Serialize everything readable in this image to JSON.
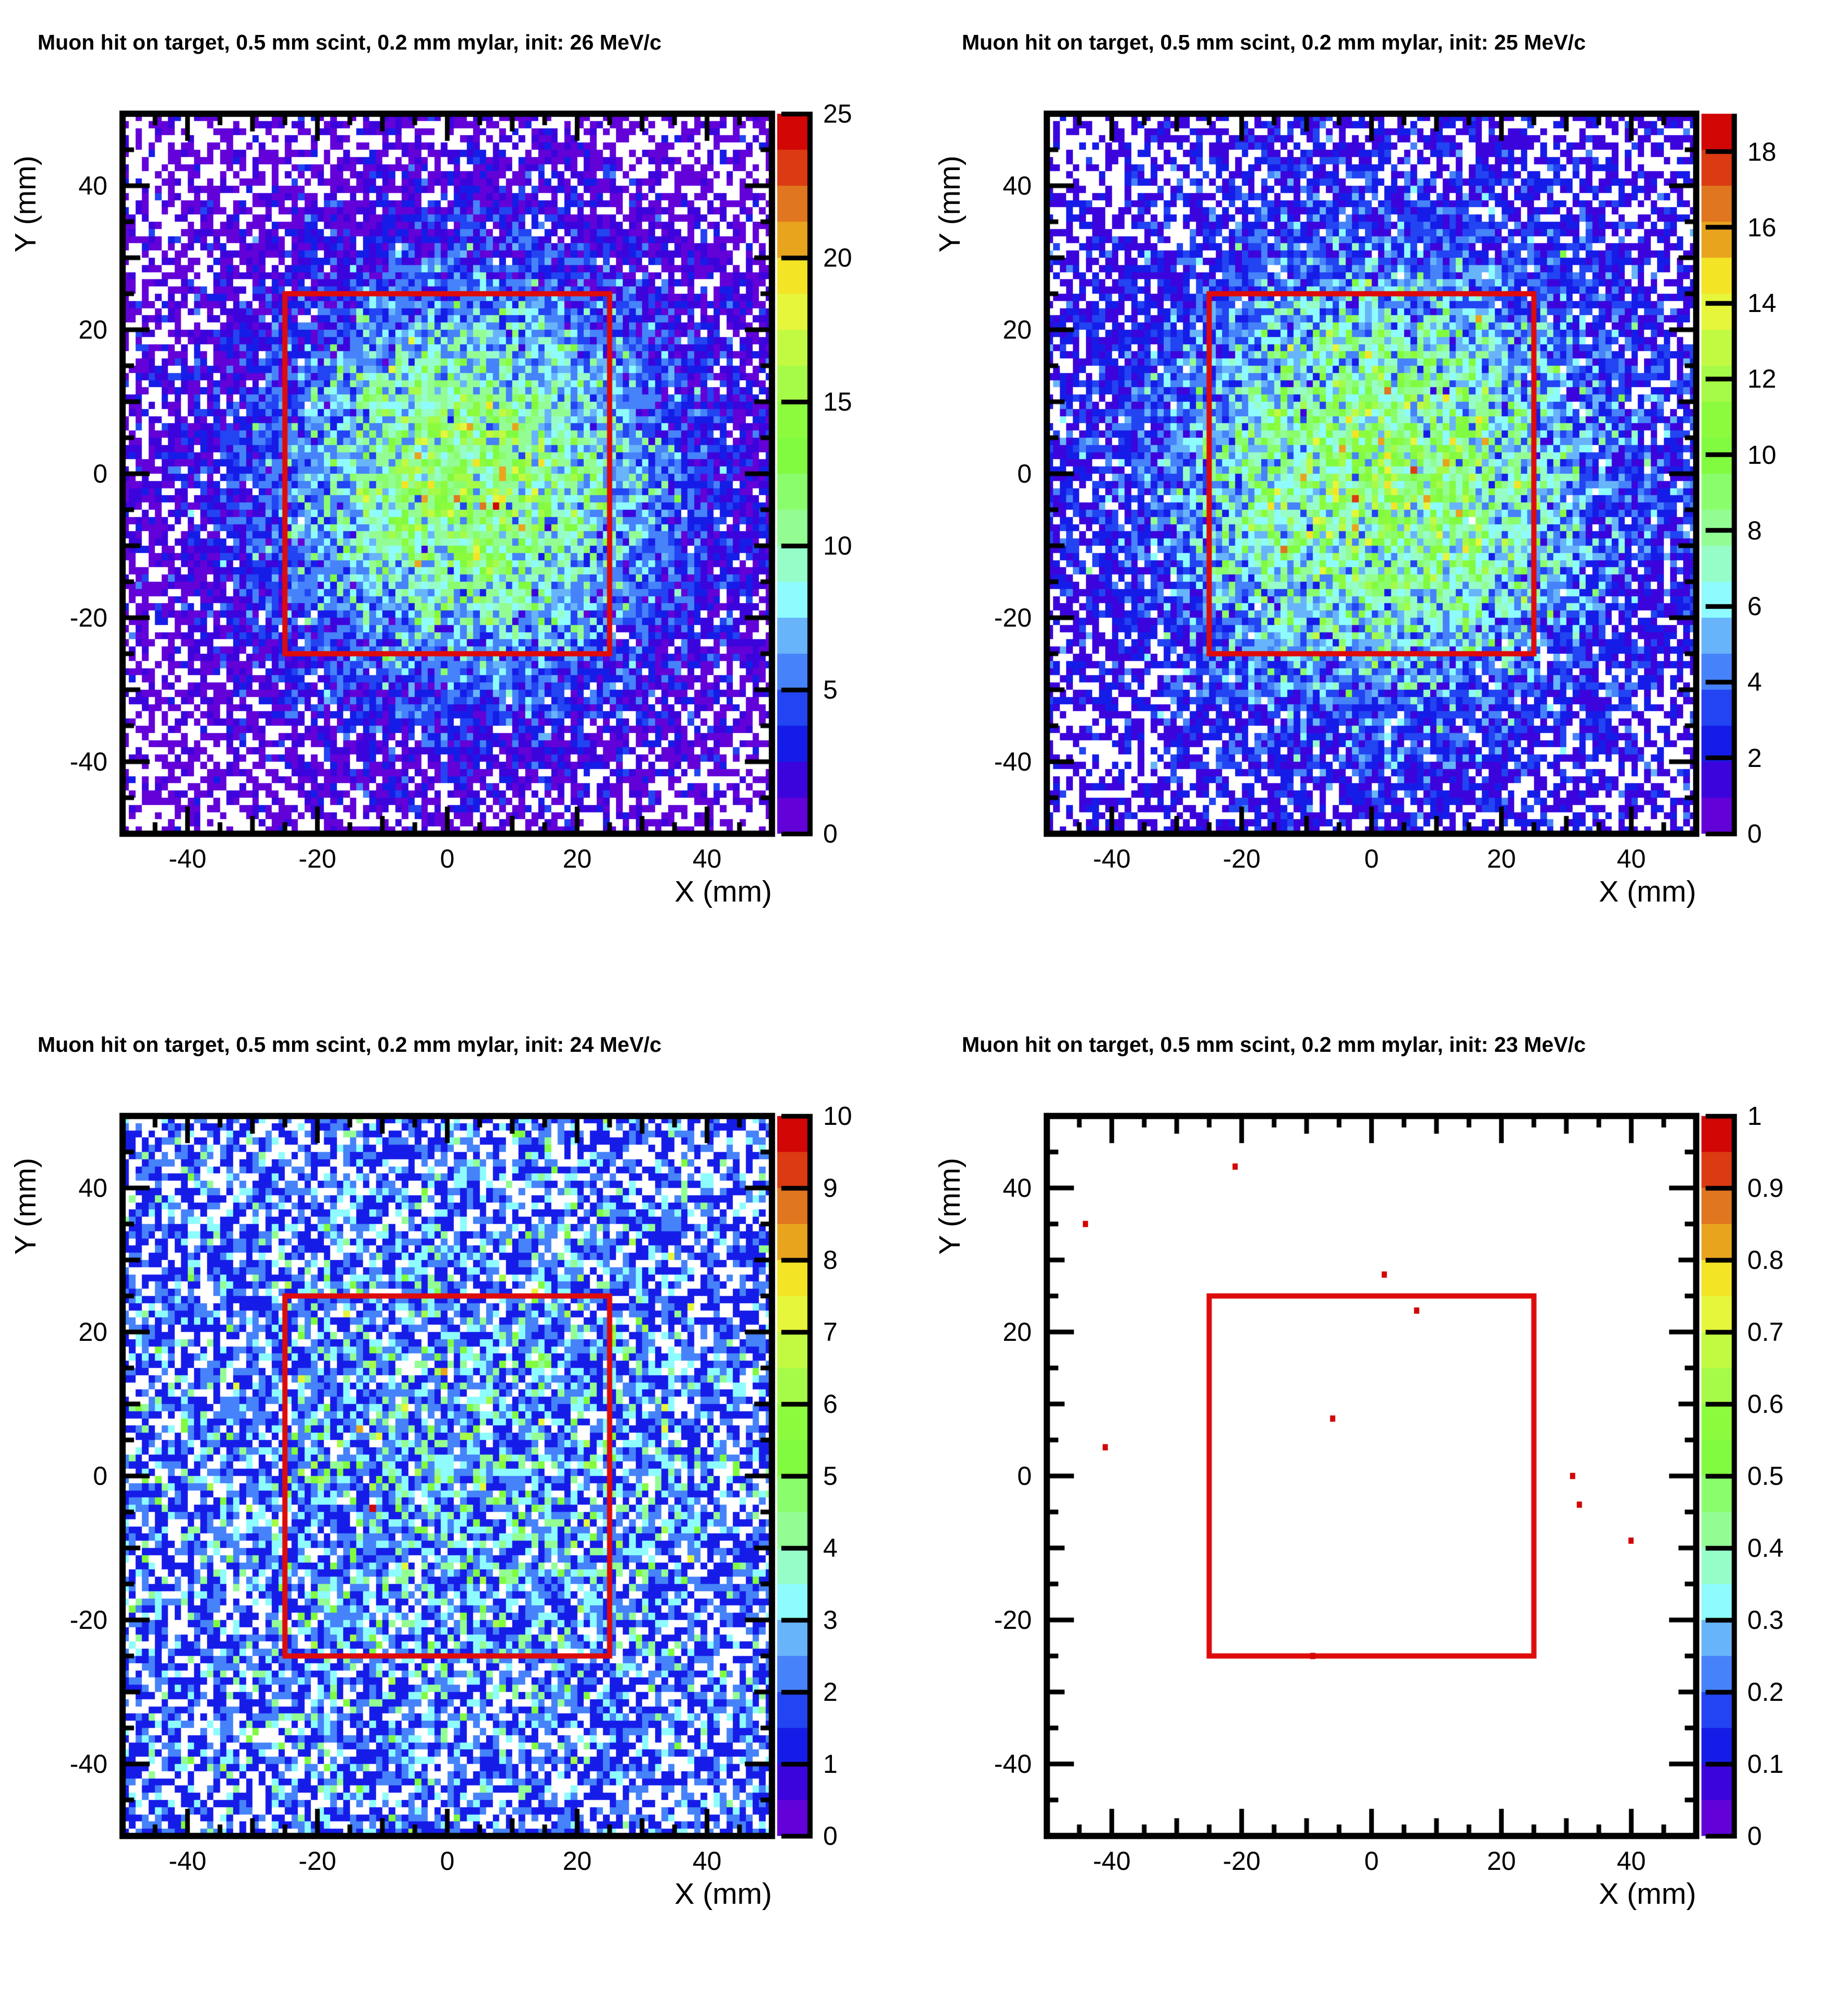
{
  "figure": {
    "background": "#ffffff",
    "frame_color": "#000000",
    "overlay_box_color": "#de0b0b",
    "palette": [
      "#6202d8",
      "#3c04dc",
      "#161ce8",
      "#2244f2",
      "#4682fa",
      "#68b4fa",
      "#8efcfe",
      "#96fdc8",
      "#93fd94",
      "#8afd6c",
      "#80fb40",
      "#8cfb3e",
      "#a6fb48",
      "#c2fa42",
      "#e6f63a",
      "#f4e426",
      "#e9a41e",
      "#e0761f",
      "#dc3a12",
      "#d10605"
    ]
  },
  "chart_data": [
    {
      "type": "heatmap",
      "title": "Muon hit on target, 0.5 mm scint, 0.2 mm mylar, init: 26 MeV/c",
      "xlabel": "X (mm)",
      "ylabel": "Y (mm)",
      "x_range": [
        -50,
        50
      ],
      "y_range": [
        -50,
        50
      ],
      "bins_x": 100,
      "bins_y": 100,
      "x_ticks": [
        -40,
        -20,
        0,
        20,
        40
      ],
      "y_ticks": [
        -40,
        -20,
        0,
        20,
        40
      ],
      "z_max": 25,
      "colorbar_ticks": [
        0,
        5,
        10,
        15,
        20,
        25
      ],
      "overlay_box": {
        "x_min": -25,
        "x_max": 25,
        "y_min": -25,
        "y_max": 25
      },
      "distribution": {
        "model": "gaussian_poisson_counts",
        "amplitude": 12.0,
        "baseline": 0.55,
        "center_x": 4,
        "center_y": -1,
        "sigma_x": 21,
        "sigma_y": 19,
        "seed": 20261
      }
    },
    {
      "type": "heatmap",
      "title": "Muon hit on target, 0.5 mm scint, 0.2 mm mylar, init: 25 MeV/c",
      "xlabel": "X (mm)",
      "ylabel": "Y (mm)",
      "x_range": [
        -50,
        50
      ],
      "y_range": [
        -50,
        50
      ],
      "bins_x": 100,
      "bins_y": 100,
      "x_ticks": [
        -40,
        -20,
        0,
        20,
        40
      ],
      "y_ticks": [
        -40,
        -20,
        0,
        20,
        40
      ],
      "z_max": 19,
      "colorbar_ticks": [
        0,
        2,
        4,
        6,
        8,
        10,
        12,
        14,
        16,
        18
      ],
      "overlay_box": {
        "x_min": -25,
        "x_max": 25,
        "y_min": -25,
        "y_max": 25
      },
      "distribution": {
        "model": "gaussian_poisson_counts",
        "amplitude": 9.2,
        "baseline": 0.5,
        "center_x": 2,
        "center_y": -1,
        "sigma_x": 23,
        "sigma_y": 21,
        "seed": 20251
      }
    },
    {
      "type": "heatmap",
      "title": "Muon hit on target, 0.5 mm scint, 0.2 mm mylar, init: 24 MeV/c",
      "xlabel": "X (mm)",
      "ylabel": "Y (mm)",
      "x_range": [
        -50,
        50
      ],
      "y_range": [
        -50,
        50
      ],
      "bins_x": 100,
      "bins_y": 100,
      "x_ticks": [
        -40,
        -20,
        0,
        20,
        40
      ],
      "y_ticks": [
        -40,
        -20,
        0,
        20,
        40
      ],
      "z_max": 10,
      "colorbar_ticks": [
        0,
        1,
        2,
        3,
        4,
        5,
        6,
        7,
        8,
        9,
        10
      ],
      "overlay_box": {
        "x_min": -25,
        "x_max": 25,
        "y_min": -25,
        "y_max": 25
      },
      "distribution": {
        "model": "gaussian_poisson_counts",
        "amplitude": 1.25,
        "baseline": 1.0,
        "center_x": 2,
        "center_y": 0,
        "sigma_x": 27,
        "sigma_y": 25,
        "seed": 20241
      }
    },
    {
      "type": "scatter_bins",
      "title": "Muon hit on target, 0.5 mm scint, 0.2 mm mylar, init: 23 MeV/c",
      "xlabel": "X (mm)",
      "ylabel": "Y (mm)",
      "x_range": [
        -50,
        50
      ],
      "y_range": [
        -50,
        50
      ],
      "bins_x": 100,
      "bins_y": 100,
      "x_ticks": [
        -40,
        -20,
        0,
        20,
        40
      ],
      "y_ticks": [
        -40,
        -20,
        0,
        20,
        40
      ],
      "z_max": 1,
      "colorbar_ticks": [
        0,
        0.1,
        0.2,
        0.3,
        0.4,
        0.5,
        0.6,
        0.7,
        0.8,
        0.9,
        1
      ],
      "overlay_box": {
        "x_min": -25,
        "x_max": 25,
        "y_min": -25,
        "y_max": 25
      },
      "points": [
        {
          "x": -21,
          "y": 43,
          "value": 1
        },
        {
          "x": -44,
          "y": 35,
          "value": 1
        },
        {
          "x": 2,
          "y": 28,
          "value": 1
        },
        {
          "x": 7,
          "y": 23,
          "value": 1
        },
        {
          "x": -6,
          "y": 8,
          "value": 1
        },
        {
          "x": -41,
          "y": 4,
          "value": 1
        },
        {
          "x": 31,
          "y": 0,
          "value": 1
        },
        {
          "x": 32,
          "y": -4,
          "value": 1
        },
        {
          "x": 40,
          "y": -9,
          "value": 1
        },
        {
          "x": -9,
          "y": -25,
          "value": 1
        }
      ]
    }
  ]
}
